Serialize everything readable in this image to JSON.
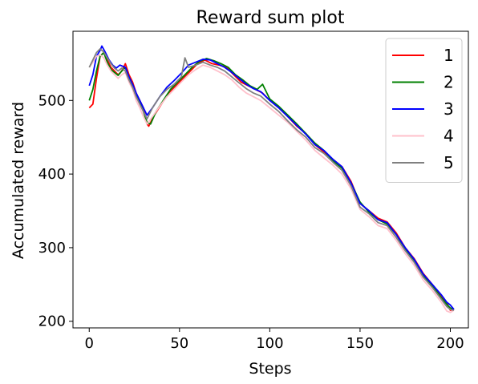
{
  "chart_data": {
    "type": "line",
    "title": "Reward sum plot",
    "xlabel": "Steps",
    "ylabel": "Accumulated reward",
    "xlim": [
      -9,
      210
    ],
    "ylim": [
      191,
      594
    ],
    "xticks": [
      0,
      50,
      100,
      150,
      200
    ],
    "yticks": [
      200,
      300,
      400,
      500
    ],
    "grid": false,
    "legend_position": "top-right",
    "series": [
      {
        "name": "1",
        "color": "#ff0000",
        "points": [
          [
            0,
            490
          ],
          [
            2,
            495
          ],
          [
            4,
            530
          ],
          [
            6,
            560
          ],
          [
            8,
            565
          ],
          [
            10,
            555
          ],
          [
            12,
            545
          ],
          [
            14,
            540
          ],
          [
            16,
            535
          ],
          [
            18,
            540
          ],
          [
            20,
            550
          ],
          [
            22,
            535
          ],
          [
            24,
            525
          ],
          [
            26,
            510
          ],
          [
            28,
            500
          ],
          [
            30,
            490
          ],
          [
            32,
            468
          ],
          [
            33,
            465
          ],
          [
            36,
            480
          ],
          [
            40,
            495
          ],
          [
            44,
            510
          ],
          [
            48,
            520
          ],
          [
            52,
            530
          ],
          [
            56,
            540
          ],
          [
            60,
            550
          ],
          [
            64,
            555
          ],
          [
            68,
            550
          ],
          [
            72,
            548
          ],
          [
            76,
            545
          ],
          [
            80,
            535
          ],
          [
            84,
            525
          ],
          [
            88,
            520
          ],
          [
            92,
            515
          ],
          [
            96,
            510
          ],
          [
            100,
            500
          ],
          [
            105,
            490
          ],
          [
            110,
            478
          ],
          [
            115,
            465
          ],
          [
            120,
            455
          ],
          [
            125,
            440
          ],
          [
            130,
            430
          ],
          [
            135,
            420
          ],
          [
            140,
            410
          ],
          [
            145,
            390
          ],
          [
            150,
            360
          ],
          [
            155,
            350
          ],
          [
            160,
            340
          ],
          [
            165,
            335
          ],
          [
            170,
            320
          ],
          [
            175,
            300
          ],
          [
            180,
            285
          ],
          [
            185,
            265
          ],
          [
            190,
            250
          ],
          [
            195,
            235
          ],
          [
            198,
            225
          ],
          [
            200,
            215
          ],
          [
            202,
            216
          ]
        ]
      },
      {
        "name": "2",
        "color": "#008000",
        "points": [
          [
            0,
            500
          ],
          [
            2,
            515
          ],
          [
            4,
            540
          ],
          [
            6,
            560
          ],
          [
            8,
            565
          ],
          [
            10,
            552
          ],
          [
            12,
            542
          ],
          [
            14,
            538
          ],
          [
            16,
            534
          ],
          [
            18,
            540
          ],
          [
            20,
            545
          ],
          [
            22,
            532
          ],
          [
            24,
            522
          ],
          [
            26,
            508
          ],
          [
            28,
            498
          ],
          [
            30,
            485
          ],
          [
            32,
            470
          ],
          [
            34,
            468
          ],
          [
            37,
            485
          ],
          [
            41,
            500
          ],
          [
            45,
            515
          ],
          [
            49,
            525
          ],
          [
            53,
            535
          ],
          [
            57,
            545
          ],
          [
            61,
            553
          ],
          [
            65,
            557
          ],
          [
            69,
            554
          ],
          [
            73,
            550
          ],
          [
            77,
            545
          ],
          [
            81,
            535
          ],
          [
            85,
            528
          ],
          [
            89,
            520
          ],
          [
            93,
            515
          ],
          [
            96,
            522
          ],
          [
            100,
            502
          ],
          [
            105,
            492
          ],
          [
            110,
            480
          ],
          [
            115,
            468
          ],
          [
            120,
            455
          ],
          [
            125,
            442
          ],
          [
            130,
            432
          ],
          [
            135,
            418
          ],
          [
            140,
            408
          ],
          [
            145,
            388
          ],
          [
            150,
            362
          ],
          [
            155,
            348
          ],
          [
            160,
            338
          ],
          [
            165,
            332
          ],
          [
            170,
            318
          ],
          [
            175,
            298
          ],
          [
            180,
            282
          ],
          [
            185,
            262
          ],
          [
            190,
            248
          ],
          [
            195,
            232
          ],
          [
            198,
            223
          ],
          [
            200,
            218
          ],
          [
            202,
            216
          ]
        ]
      },
      {
        "name": "3",
        "color": "#0000ff",
        "points": [
          [
            0,
            520
          ],
          [
            2,
            535
          ],
          [
            4,
            560
          ],
          [
            6,
            568
          ],
          [
            7,
            574
          ],
          [
            9,
            565
          ],
          [
            11,
            555
          ],
          [
            13,
            548
          ],
          [
            15,
            544
          ],
          [
            17,
            548
          ],
          [
            20,
            545
          ],
          [
            22,
            532
          ],
          [
            24,
            522
          ],
          [
            26,
            510
          ],
          [
            28,
            500
          ],
          [
            30,
            490
          ],
          [
            32,
            480
          ],
          [
            35,
            490
          ],
          [
            39,
            505
          ],
          [
            43,
            518
          ],
          [
            47,
            527
          ],
          [
            51,
            537
          ],
          [
            55,
            548
          ],
          [
            59,
            552
          ],
          [
            63,
            556
          ],
          [
            67,
            555
          ],
          [
            71,
            550
          ],
          [
            75,
            545
          ],
          [
            79,
            538
          ],
          [
            83,
            530
          ],
          [
            87,
            522
          ],
          [
            91,
            516
          ],
          [
            95,
            512
          ],
          [
            100,
            500
          ],
          [
            105,
            490
          ],
          [
            110,
            478
          ],
          [
            115,
            466
          ],
          [
            120,
            454
          ],
          [
            125,
            440
          ],
          [
            130,
            432
          ],
          [
            135,
            420
          ],
          [
            140,
            410
          ],
          [
            145,
            388
          ],
          [
            150,
            360
          ],
          [
            155,
            350
          ],
          [
            160,
            338
          ],
          [
            165,
            334
          ],
          [
            170,
            318
          ],
          [
            175,
            300
          ],
          [
            180,
            284
          ],
          [
            185,
            264
          ],
          [
            190,
            250
          ],
          [
            195,
            236
          ],
          [
            198,
            226
          ],
          [
            200,
            222
          ],
          [
            202,
            216
          ]
        ]
      },
      {
        "name": "4",
        "color": "#ffc0cb",
        "points": [
          [
            0,
            545
          ],
          [
            2,
            552
          ],
          [
            4,
            560
          ],
          [
            6,
            562
          ],
          [
            8,
            558
          ],
          [
            10,
            548
          ],
          [
            12,
            540
          ],
          [
            14,
            535
          ],
          [
            16,
            530
          ],
          [
            18,
            535
          ],
          [
            20,
            538
          ],
          [
            22,
            525
          ],
          [
            24,
            515
          ],
          [
            26,
            500
          ],
          [
            28,
            490
          ],
          [
            30,
            478
          ],
          [
            32,
            468
          ],
          [
            35,
            478
          ],
          [
            39,
            492
          ],
          [
            43,
            505
          ],
          [
            47,
            515
          ],
          [
            51,
            525
          ],
          [
            55,
            535
          ],
          [
            59,
            542
          ],
          [
            63,
            548
          ],
          [
            67,
            545
          ],
          [
            71,
            540
          ],
          [
            75,
            535
          ],
          [
            79,
            528
          ],
          [
            83,
            518
          ],
          [
            87,
            510
          ],
          [
            91,
            505
          ],
          [
            95,
            500
          ],
          [
            100,
            490
          ],
          [
            105,
            480
          ],
          [
            110,
            470
          ],
          [
            115,
            458
          ],
          [
            120,
            446
          ],
          [
            125,
            432
          ],
          [
            130,
            422
          ],
          [
            135,
            412
          ],
          [
            140,
            400
          ],
          [
            145,
            380
          ],
          [
            150,
            352
          ],
          [
            155,
            342
          ],
          [
            160,
            330
          ],
          [
            165,
            326
          ],
          [
            170,
            310
          ],
          [
            175,
            292
          ],
          [
            180,
            276
          ],
          [
            185,
            256
          ],
          [
            190,
            242
          ],
          [
            195,
            226
          ],
          [
            198,
            214
          ],
          [
            200,
            212
          ],
          [
            202,
            215
          ]
        ]
      },
      {
        "name": "5",
        "color": "#808080",
        "points": [
          [
            0,
            545
          ],
          [
            2,
            555
          ],
          [
            4,
            565
          ],
          [
            6,
            570
          ],
          [
            8,
            566
          ],
          [
            10,
            558
          ],
          [
            12,
            550
          ],
          [
            14,
            544
          ],
          [
            16,
            540
          ],
          [
            18,
            544
          ],
          [
            20,
            540
          ],
          [
            22,
            528
          ],
          [
            24,
            518
          ],
          [
            26,
            505
          ],
          [
            28,
            495
          ],
          [
            30,
            485
          ],
          [
            32,
            475
          ],
          [
            35,
            490
          ],
          [
            39,
            505
          ],
          [
            43,
            515
          ],
          [
            47,
            522
          ],
          [
            51,
            532
          ],
          [
            53,
            558
          ],
          [
            55,
            545
          ],
          [
            59,
            548
          ],
          [
            63,
            552
          ],
          [
            67,
            548
          ],
          [
            71,
            545
          ],
          [
            75,
            540
          ],
          [
            79,
            532
          ],
          [
            83,
            524
          ],
          [
            87,
            516
          ],
          [
            91,
            510
          ],
          [
            95,
            506
          ],
          [
            100,
            495
          ],
          [
            105,
            485
          ],
          [
            110,
            472
          ],
          [
            115,
            460
          ],
          [
            120,
            450
          ],
          [
            125,
            436
          ],
          [
            130,
            428
          ],
          [
            135,
            416
          ],
          [
            140,
            405
          ],
          [
            145,
            384
          ],
          [
            150,
            355
          ],
          [
            155,
            346
          ],
          [
            160,
            334
          ],
          [
            165,
            330
          ],
          [
            170,
            314
          ],
          [
            175,
            296
          ],
          [
            180,
            280
          ],
          [
            185,
            260
          ],
          [
            190,
            246
          ],
          [
            195,
            230
          ],
          [
            198,
            220
          ],
          [
            200,
            216
          ],
          [
            202,
            215
          ]
        ]
      }
    ]
  }
}
